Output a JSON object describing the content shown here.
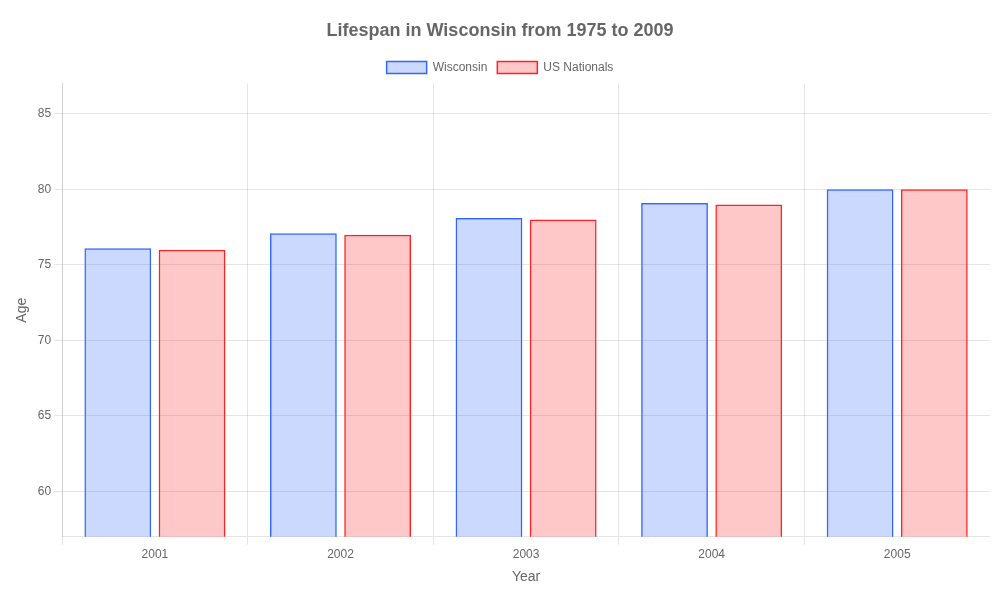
{
  "chart_data": {
    "type": "bar",
    "title": "Lifespan in Wisconsin from 1975 to 2009",
    "xlabel": "Year",
    "ylabel": "Age",
    "categories": [
      "2001",
      "2002",
      "2003",
      "2004",
      "2005"
    ],
    "series": [
      {
        "name": "Wisconsin",
        "color": "#3366ff",
        "values": [
          76.1,
          77.1,
          78.1,
          79.1,
          80.0
        ]
      },
      {
        "name": "US Nationals",
        "color": "#ff2222",
        "values": [
          76.0,
          77.0,
          78.0,
          79.0,
          80.0
        ]
      }
    ],
    "ylim": [
      57,
      87
    ],
    "yticks": [
      60,
      65,
      70,
      75,
      80,
      85
    ],
    "grid": true,
    "legend": "top"
  }
}
